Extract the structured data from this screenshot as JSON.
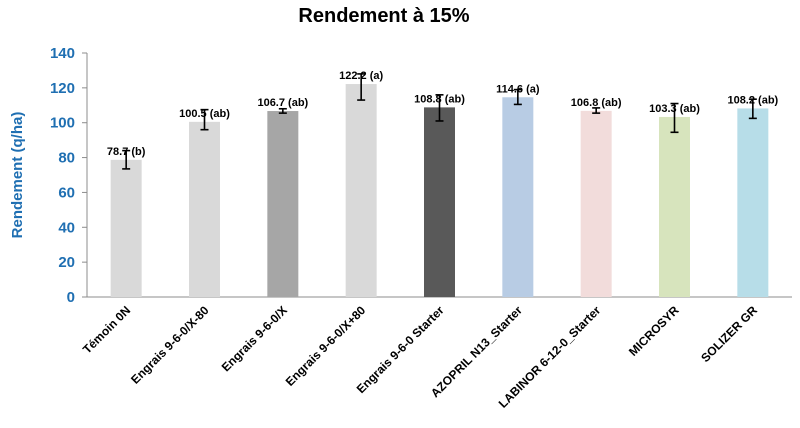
{
  "chart_data": {
    "type": "bar",
    "title": "Rendement à 15%",
    "ylabel": "Rendement (q/ha)",
    "xlabel": "",
    "ylim": [
      0,
      140
    ],
    "yticks": [
      0,
      20,
      40,
      60,
      80,
      100,
      120,
      140
    ],
    "grid": false,
    "legend": "none",
    "axis_color": "#1f6fb2",
    "categories": [
      "Témoin 0N",
      "Engrais 9-6-0/X-80",
      "Engrais 9-6-0/X",
      "Engrais 9-6-0/X+80",
      "Engrais 9-6-0 Starter",
      "AZOPRIL N13_Starter",
      "LABINOR 6-12-0_Starter",
      "MICROSYR",
      "SOLIZER GR"
    ],
    "values": [
      78.7,
      100.5,
      106.7,
      122.2,
      108.8,
      114.6,
      106.8,
      103.3,
      108.2
    ],
    "error_low": [
      73.5,
      96.0,
      105.5,
      113.0,
      101.0,
      110.5,
      105.5,
      94.5,
      102.5
    ],
    "error_high": [
      84.0,
      107.5,
      108.0,
      128.0,
      116.0,
      119.0,
      108.5,
      111.0,
      113.5
    ],
    "data_labels": [
      "78.7 (b)",
      "100.5 (ab)",
      "106.7 (ab)",
      "122.2 (a)",
      "108.8 (ab)",
      "114.6 (a)",
      "106.8 (ab)",
      "103.3 (ab)",
      "108.2 (ab)"
    ],
    "colors": [
      "#d9d9d9",
      "#d9d9d9",
      "#a6a6a6",
      "#d9d9d9",
      "#595959",
      "#b8cce4",
      "#f2dcdb",
      "#d7e4bd",
      "#b7dde8"
    ]
  }
}
